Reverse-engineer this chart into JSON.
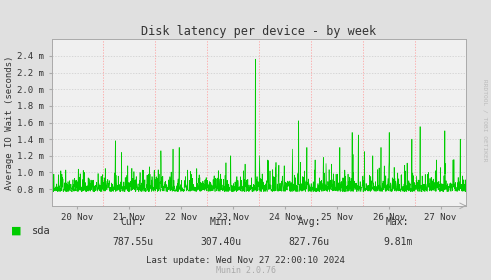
{
  "title": "Disk latency per device - by week",
  "ylabel": "Average IO Wait (seconds)",
  "bg_color": "#e0e0e0",
  "plot_bg_color": "#f0f0f0",
  "line_color": "#00cc00",
  "grid_color_h": "#cccccc",
  "grid_color_v": "#ff9999",
  "axis_color": "#aaaaaa",
  "text_color": "#333333",
  "legend_label": "sda",
  "legend_color": "#00cc00",
  "cur_label": "Cur:",
  "cur_value": "787.55u",
  "min_label": "Min:",
  "min_value": "307.40u",
  "avg_label": "Avg:",
  "avg_value": "827.76u",
  "max_label": "Max:",
  "max_value": "9.81m",
  "last_update": "Last update: Wed Nov 27 22:00:10 2024",
  "munin_version": "Munin 2.0.76",
  "right_label": "RRDTOOL / TOBI OETIKER",
  "ylim_min": 0.0006,
  "ylim_max": 0.0026,
  "yticks": [
    0.0008,
    0.001,
    0.0012,
    0.0014,
    0.0016,
    0.0018,
    0.002,
    0.0022,
    0.0024
  ],
  "ytick_labels": [
    "0.8 m",
    "1.0 m",
    "1.2 m",
    "1.4 m",
    "1.6 m",
    "1.8 m",
    "2.0 m",
    "2.2 m",
    "2.4 m"
  ],
  "x_day_labels": [
    "20 Nov",
    "21 Nov",
    "22 Nov",
    "23 Nov",
    "24 Nov",
    "25 Nov",
    "26 Nov",
    "27 Nov"
  ],
  "x_vline_positions": [
    0.0,
    1.0,
    2.0,
    3.0,
    4.0,
    5.0,
    6.0,
    7.0,
    8.0
  ],
  "num_points": 2016,
  "base_value": 0.00077,
  "noise_scale": 6e-05,
  "seed": 42
}
